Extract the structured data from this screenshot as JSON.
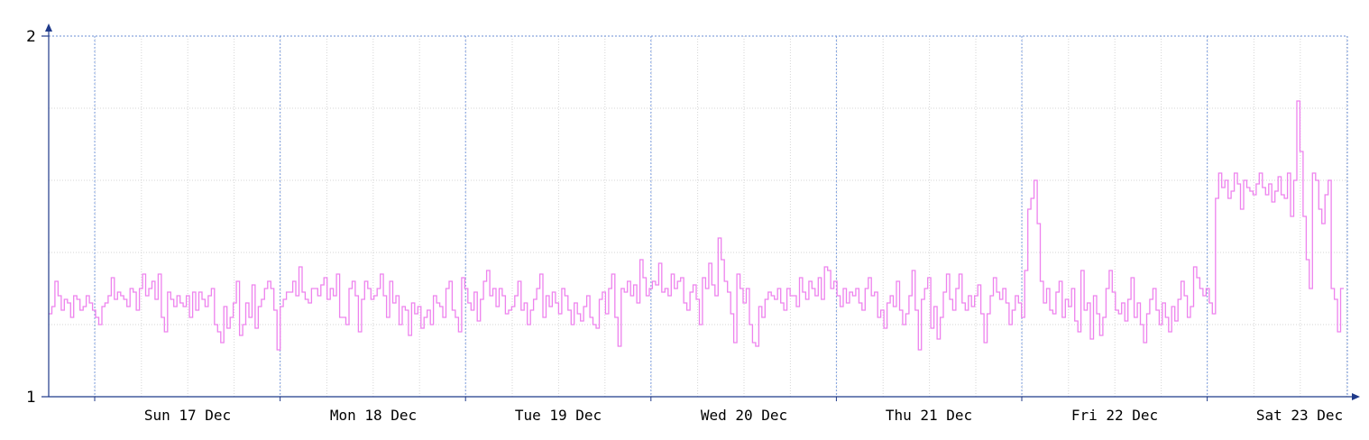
{
  "chart_data": {
    "type": "line",
    "title": "",
    "xlabel": "",
    "ylabel": "",
    "x_tick_labels": [
      "Sun 17 Dec",
      "Mon 18 Dec",
      "Tue 19 Dec",
      "Wed 20 Dec",
      "Thu 21 Dec",
      "Fri 22 Dec",
      "Sat 23 Dec"
    ],
    "y_tick_labels": [
      "1",
      "2"
    ],
    "ylim": [
      1,
      2
    ],
    "grid": true,
    "line_style": "step",
    "days_shown": 7,
    "series": [
      {
        "name": "",
        "color": "#ee82ee",
        "values": [
          1.23,
          1.25,
          1.32,
          1.28,
          1.24,
          1.27,
          1.26,
          1.22,
          1.28,
          1.27,
          1.24,
          1.25,
          1.28,
          1.26,
          1.24,
          1.22,
          1.2,
          1.25,
          1.26,
          1.28,
          1.33,
          1.27,
          1.29,
          1.28,
          1.27,
          1.25,
          1.3,
          1.29,
          1.24,
          1.3,
          1.34,
          1.28,
          1.3,
          1.32,
          1.27,
          1.34,
          1.22,
          1.18,
          1.29,
          1.27,
          1.25,
          1.28,
          1.26,
          1.25,
          1.28,
          1.22,
          1.29,
          1.24,
          1.29,
          1.27,
          1.25,
          1.28,
          1.3,
          1.2,
          1.18,
          1.15,
          1.25,
          1.19,
          1.22,
          1.26,
          1.32,
          1.17,
          1.2,
          1.26,
          1.22,
          1.31,
          1.19,
          1.25,
          1.27,
          1.3,
          1.32,
          1.3,
          1.24,
          1.13,
          1.25,
          1.27,
          1.29,
          1.29,
          1.32,
          1.28,
          1.36,
          1.29,
          1.27,
          1.26,
          1.3,
          1.3,
          1.28,
          1.31,
          1.33,
          1.27,
          1.3,
          1.28,
          1.34,
          1.22,
          1.22,
          1.2,
          1.3,
          1.32,
          1.28,
          1.18,
          1.27,
          1.32,
          1.3,
          1.27,
          1.28,
          1.3,
          1.34,
          1.28,
          1.22,
          1.32,
          1.26,
          1.28,
          1.2,
          1.25,
          1.24,
          1.17,
          1.26,
          1.23,
          1.25,
          1.19,
          1.22,
          1.24,
          1.2,
          1.28,
          1.26,
          1.25,
          1.22,
          1.3,
          1.32,
          1.24,
          1.22,
          1.18,
          1.33,
          1.3,
          1.26,
          1.24,
          1.29,
          1.21,
          1.27,
          1.32,
          1.35,
          1.28,
          1.3,
          1.25,
          1.3,
          1.28,
          1.23,
          1.24,
          1.25,
          1.28,
          1.32,
          1.24,
          1.26,
          1.2,
          1.24,
          1.27,
          1.3,
          1.34,
          1.22,
          1.28,
          1.25,
          1.29,
          1.26,
          1.23,
          1.3,
          1.28,
          1.24,
          1.2,
          1.26,
          1.23,
          1.21,
          1.25,
          1.28,
          1.22,
          1.2,
          1.19,
          1.27,
          1.29,
          1.23,
          1.3,
          1.34,
          1.22,
          1.14,
          1.3,
          1.29,
          1.32,
          1.28,
          1.31,
          1.26,
          1.38,
          1.33,
          1.28,
          1.3,
          1.32,
          1.31,
          1.37,
          1.29,
          1.3,
          1.28,
          1.34,
          1.3,
          1.32,
          1.33,
          1.26,
          1.24,
          1.29,
          1.31,
          1.27,
          1.2,
          1.33,
          1.3,
          1.37,
          1.31,
          1.28,
          1.44,
          1.38,
          1.32,
          1.29,
          1.23,
          1.15,
          1.34,
          1.3,
          1.26,
          1.3,
          1.2,
          1.15,
          1.14,
          1.25,
          1.22,
          1.27,
          1.29,
          1.28,
          1.27,
          1.3,
          1.26,
          1.24,
          1.3,
          1.28,
          1.28,
          1.25,
          1.33,
          1.29,
          1.27,
          1.32,
          1.3,
          1.28,
          1.33,
          1.27,
          1.36,
          1.35,
          1.3,
          1.32,
          1.28,
          1.25,
          1.3,
          1.26,
          1.29,
          1.28,
          1.3,
          1.26,
          1.24,
          1.3,
          1.33,
          1.28,
          1.29,
          1.22,
          1.24,
          1.19,
          1.26,
          1.28,
          1.25,
          1.32,
          1.24,
          1.2,
          1.23,
          1.28,
          1.35,
          1.24,
          1.13,
          1.27,
          1.3,
          1.33,
          1.19,
          1.25,
          1.16,
          1.22,
          1.29,
          1.34,
          1.27,
          1.24,
          1.3,
          1.34,
          1.26,
          1.24,
          1.28,
          1.25,
          1.28,
          1.31,
          1.23,
          1.15,
          1.23,
          1.28,
          1.33,
          1.29,
          1.27,
          1.3,
          1.26,
          1.2,
          1.24,
          1.28,
          1.26,
          1.22,
          1.35,
          1.52,
          1.55,
          1.6,
          1.48,
          1.32,
          1.26,
          1.3,
          1.24,
          1.23,
          1.29,
          1.32,
          1.22,
          1.27,
          1.25,
          1.3,
          1.21,
          1.18,
          1.35,
          1.24,
          1.26,
          1.16,
          1.28,
          1.23,
          1.17,
          1.22,
          1.3,
          1.35,
          1.29,
          1.24,
          1.23,
          1.26,
          1.21,
          1.27,
          1.33,
          1.22,
          1.26,
          1.2,
          1.15,
          1.23,
          1.27,
          1.3,
          1.24,
          1.2,
          1.26,
          1.22,
          1.18,
          1.25,
          1.21,
          1.27,
          1.32,
          1.28,
          1.22,
          1.25,
          1.36,
          1.33,
          1.3,
          1.28,
          1.3,
          1.26,
          1.23,
          1.55,
          1.62,
          1.58,
          1.6,
          1.55,
          1.57,
          1.62,
          1.59,
          1.52,
          1.6,
          1.58,
          1.57,
          1.56,
          1.59,
          1.62,
          1.58,
          1.56,
          1.59,
          1.54,
          1.57,
          1.61,
          1.56,
          1.55,
          1.62,
          1.5,
          1.6,
          1.82,
          1.68,
          1.5,
          1.38,
          1.3,
          1.62,
          1.6,
          1.52,
          1.48,
          1.56,
          1.6,
          1.3,
          1.27,
          1.18,
          1.3
        ]
      }
    ]
  }
}
